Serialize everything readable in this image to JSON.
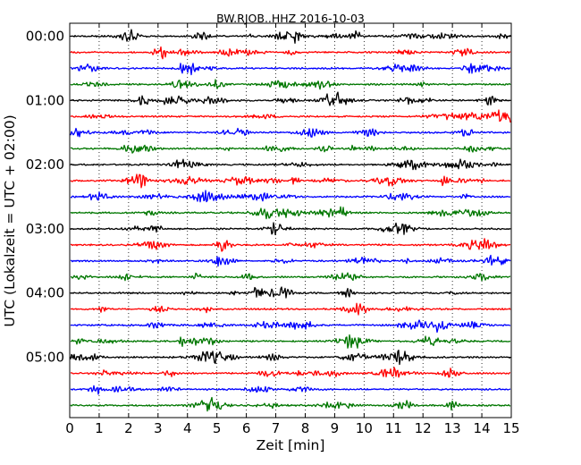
{
  "chart_data": {
    "type": "line",
    "title": "BW.RJOB..HHZ 2016-10-03",
    "xlabel": "Zeit  [min]",
    "ylabel": "UTC (Lokalzeit = UTC + 02:00)",
    "xlim": [
      0,
      15
    ],
    "x_ticks": [
      0,
      1,
      2,
      3,
      4,
      5,
      6,
      7,
      8,
      9,
      10,
      11,
      12,
      13,
      14,
      15
    ],
    "x_tick_labels": [
      "0",
      "1",
      "2",
      "3",
      "4",
      "5",
      "6",
      "7",
      "8",
      "9",
      "10",
      "11",
      "12",
      "13",
      "14",
      "15"
    ],
    "y_tick_labels": [
      "00:00",
      "01:00",
      "02:00",
      "03:00",
      "04:00",
      "05:00"
    ],
    "rows_per_hour": 4,
    "row_count": 24,
    "color_cycle": [
      "#000000",
      "#ff0000",
      "#0000ff",
      "#007700"
    ],
    "grid": "vertical dotted at each minute",
    "legend": "none"
  }
}
